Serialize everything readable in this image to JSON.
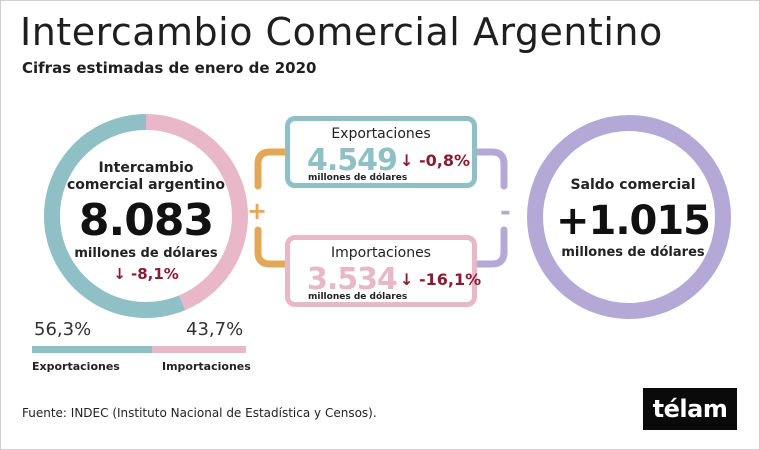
{
  "header": {
    "title": "Intercambio Comercial Argentino",
    "subtitle": "Cifras estimadas de enero de 2020"
  },
  "total": {
    "label_line1": "Intercambio",
    "label_line2": "comercial argentino",
    "value": "8.083",
    "units": "millones de dólares",
    "change": "↓ -8,1%"
  },
  "exports": {
    "title": "Exportaciones",
    "value": "4.549",
    "change": "↓ -0,8%",
    "units": "millones de dólares"
  },
  "imports": {
    "title": "Importaciones",
    "value": "3.534",
    "change": "↓ -16,1%",
    "units": "millones de dólares"
  },
  "balance": {
    "label": "Saldo comercial",
    "value": "+1.015",
    "units": "millones de dólares"
  },
  "operators": {
    "plus": "+",
    "minus": "-"
  },
  "share": {
    "exports_pct": "56,3%",
    "imports_pct": "43,7%",
    "exports_label": "Exportaciones",
    "imports_label": "Importaciones"
  },
  "chart_data": {
    "type": "pie",
    "title": "Intercambio comercial argentino",
    "categories": [
      "Exportaciones",
      "Importaciones"
    ],
    "values": [
      56.3,
      43.7
    ],
    "units": "%",
    "amounts_musd": {
      "Exportaciones": 4549,
      "Importaciones": 3534,
      "Intercambio": 8083,
      "Saldo comercial": 1015
    },
    "changes_pct": {
      "Exportaciones": -0.8,
      "Importaciones": -16.1,
      "Intercambio": -8.1
    }
  },
  "colors": {
    "exports": "#8ec0c6",
    "imports": "#e8b8c8",
    "balance": "#b3a8d6",
    "plus_connector": "#e3a857",
    "negative": "#8b1a32"
  },
  "footer": {
    "source": "Fuente: INDEC (Instituto Nacional de Estadística y Censos).",
    "logo": "télam"
  }
}
